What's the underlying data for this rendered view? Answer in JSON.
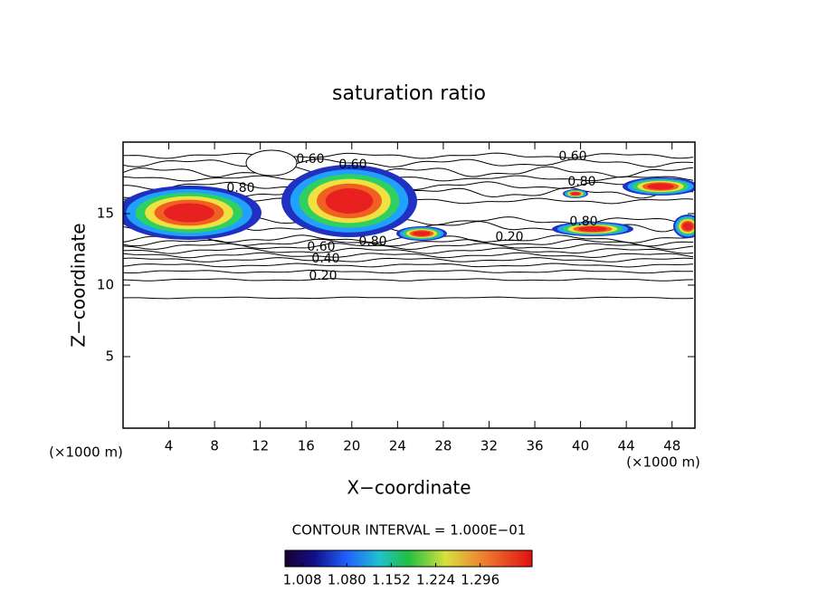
{
  "chart_data": {
    "type": "contour",
    "title": "saturation ratio",
    "x_label": "X−coordinate",
    "y_label": "Z−coordinate",
    "x_unit_label": "(×1000 m)",
    "y_unit_label": "(×1000 m)",
    "xlim": [
      0,
      50
    ],
    "xticks": [
      4,
      8,
      12,
      16,
      20,
      24,
      28,
      32,
      36,
      40,
      44,
      48
    ],
    "ylim": [
      0,
      20
    ],
    "yticks": [
      5,
      10,
      15
    ],
    "contour_labels": [
      "0.60",
      "0.60",
      "0.60",
      "0.80",
      "0.80",
      "0.80",
      "0.80",
      "0.60",
      "0.40",
      "0.20",
      "0.20"
    ],
    "contour_interval_label": "CONTOUR INTERVAL = 1.000E−01",
    "colorbar_lim": [
      0.98,
      1.38
    ],
    "colorbar_ticks": [
      {
        "value": 1.008,
        "label": "1.008"
      },
      {
        "value": 1.08,
        "label": "1.080"
      },
      {
        "value": 1.152,
        "label": "1.152"
      },
      {
        "value": 1.224,
        "label": "1.224"
      },
      {
        "value": 1.296,
        "label": "1.296"
      }
    ]
  }
}
